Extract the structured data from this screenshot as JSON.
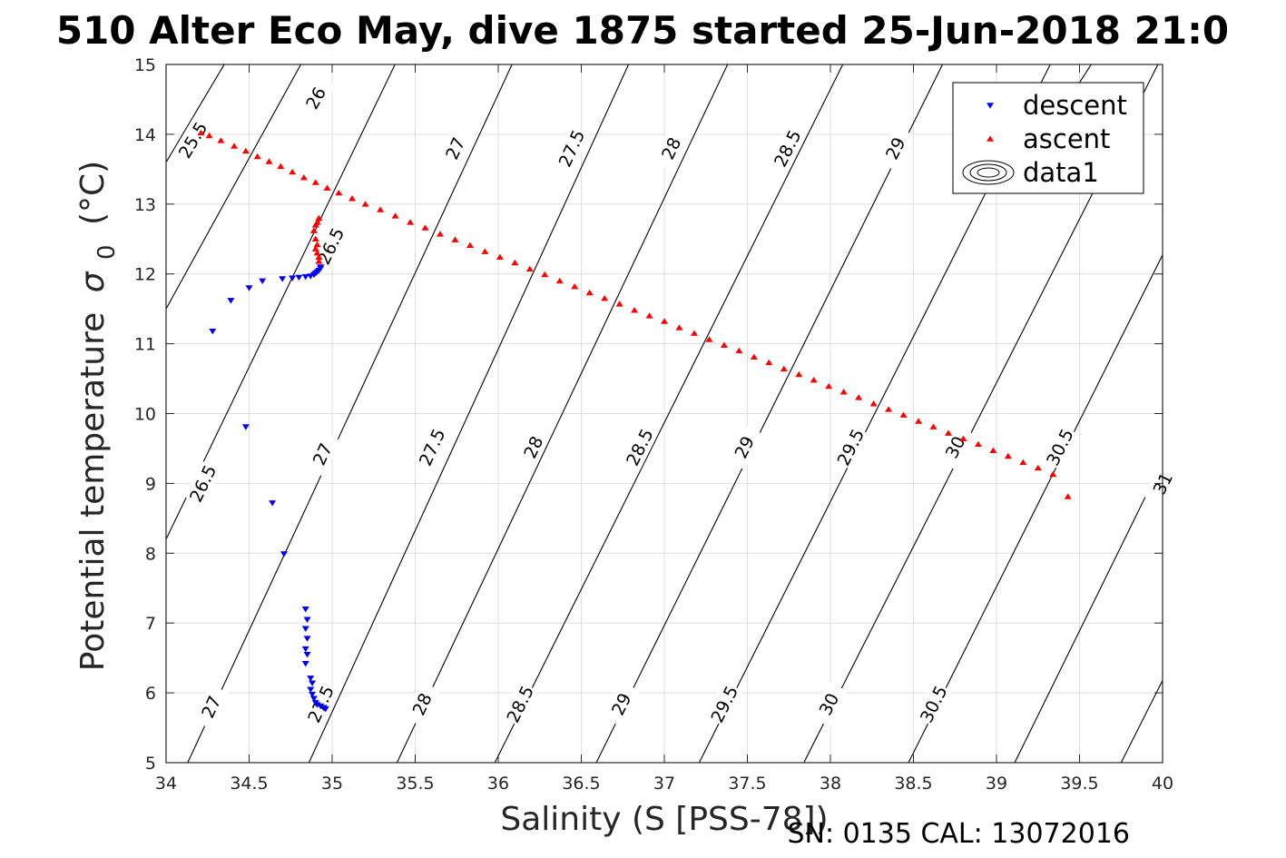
{
  "chart_data": {
    "type": "scatter",
    "title": "510 Alter Eco May, dive 1875 started 25-Jun-2018 21:0",
    "xlabel": "Salinity (S [PSS-78])",
    "ylabel": "Potential temperature σ₀ (°C)",
    "ylabel_main": "Potential temperature",
    "ylabel_sigma": "σ",
    "ylabel_sub": "0",
    "ylabel_unit": "(°C)",
    "xlim": [
      34,
      40
    ],
    "ylim": [
      5,
      15
    ],
    "xticks": [
      "34",
      "34.5",
      "35",
      "35.5",
      "36",
      "36.5",
      "37",
      "37.5",
      "38",
      "38.5",
      "39",
      "39.5",
      "40"
    ],
    "yticks": [
      "5",
      "6",
      "7",
      "8",
      "9",
      "10",
      "11",
      "12",
      "13",
      "14",
      "15"
    ],
    "grid": true,
    "legend_position": "top-right",
    "series": [
      {
        "name": "descent",
        "marker": "triangle-down",
        "color": "#0000ff",
        "points": [
          [
            34.28,
            11.18
          ],
          [
            34.39,
            11.62
          ],
          [
            34.5,
            11.8
          ],
          [
            34.58,
            11.9
          ],
          [
            34.7,
            11.93
          ],
          [
            34.76,
            11.94
          ],
          [
            34.8,
            11.95
          ],
          [
            34.84,
            11.96
          ],
          [
            34.87,
            11.97
          ],
          [
            34.89,
            11.99
          ],
          [
            34.9,
            12.01
          ],
          [
            34.91,
            12.03
          ],
          [
            34.92,
            12.05
          ],
          [
            34.93,
            12.08
          ],
          [
            34.93,
            12.1
          ],
          [
            34.48,
            9.81
          ],
          [
            34.64,
            8.72
          ],
          [
            34.71,
            7.99
          ],
          [
            34.84,
            7.2
          ],
          [
            34.85,
            7.05
          ],
          [
            34.84,
            6.92
          ],
          [
            34.85,
            6.78
          ],
          [
            34.84,
            6.63
          ],
          [
            34.85,
            6.55
          ],
          [
            34.84,
            6.42
          ],
          [
            34.87,
            6.21
          ],
          [
            34.88,
            6.14
          ],
          [
            34.87,
            6.05
          ],
          [
            34.88,
            5.98
          ],
          [
            34.89,
            5.92
          ],
          [
            34.9,
            5.86
          ],
          [
            34.91,
            5.83
          ],
          [
            34.93,
            5.81
          ],
          [
            34.95,
            5.79
          ],
          [
            34.96,
            5.77
          ]
        ]
      },
      {
        "name": "ascent",
        "marker": "triangle-up",
        "color": "#ff0000",
        "points": [
          [
            34.21,
            14.02
          ],
          [
            34.26,
            13.98
          ],
          [
            34.33,
            13.91
          ],
          [
            34.41,
            13.83
          ],
          [
            34.48,
            13.76
          ],
          [
            34.55,
            13.68
          ],
          [
            34.62,
            13.61
          ],
          [
            34.69,
            13.54
          ],
          [
            34.76,
            13.46
          ],
          [
            34.83,
            13.38
          ],
          [
            34.9,
            13.31
          ],
          [
            34.97,
            13.23
          ],
          [
            35.04,
            13.16
          ],
          [
            35.12,
            13.08
          ],
          [
            35.2,
            13.0
          ],
          [
            35.29,
            12.92
          ],
          [
            35.38,
            12.83
          ],
          [
            35.47,
            12.74
          ],
          [
            35.56,
            12.66
          ],
          [
            35.65,
            12.57
          ],
          [
            35.74,
            12.49
          ],
          [
            35.83,
            12.41
          ],
          [
            35.92,
            12.32
          ],
          [
            36.01,
            12.24
          ],
          [
            36.1,
            12.16
          ],
          [
            36.19,
            12.07
          ],
          [
            36.28,
            11.99
          ],
          [
            36.37,
            11.9
          ],
          [
            36.46,
            11.82
          ],
          [
            36.55,
            11.73
          ],
          [
            36.64,
            11.65
          ],
          [
            36.73,
            11.57
          ],
          [
            36.82,
            11.48
          ],
          [
            36.91,
            11.4
          ],
          [
            37.0,
            11.32
          ],
          [
            37.09,
            11.23
          ],
          [
            37.18,
            11.15
          ],
          [
            37.27,
            11.06
          ],
          [
            37.36,
            10.98
          ],
          [
            37.45,
            10.9
          ],
          [
            37.54,
            10.81
          ],
          [
            37.63,
            10.73
          ],
          [
            37.72,
            10.64
          ],
          [
            37.81,
            10.56
          ],
          [
            37.9,
            10.48
          ],
          [
            37.99,
            10.39
          ],
          [
            38.08,
            10.31
          ],
          [
            38.17,
            10.23
          ],
          [
            38.26,
            10.14
          ],
          [
            38.35,
            10.06
          ],
          [
            38.44,
            9.98
          ],
          [
            38.53,
            9.89
          ],
          [
            38.62,
            9.81
          ],
          [
            38.71,
            9.72
          ],
          [
            38.8,
            9.64
          ],
          [
            38.89,
            9.56
          ],
          [
            38.98,
            9.47
          ],
          [
            39.07,
            9.39
          ],
          [
            39.16,
            9.3
          ],
          [
            39.25,
            9.22
          ],
          [
            39.34,
            9.13
          ],
          [
            39.43,
            8.81
          ],
          [
            34.9,
            12.7
          ],
          [
            34.92,
            12.8
          ],
          [
            34.91,
            12.74
          ],
          [
            34.89,
            12.62
          ],
          [
            34.9,
            12.5
          ],
          [
            34.91,
            12.42
          ],
          [
            34.9,
            12.36
          ],
          [
            34.91,
            12.3
          ],
          [
            34.92,
            12.24
          ],
          [
            34.92,
            12.18
          ]
        ]
      },
      {
        "name": "data1",
        "marker": "contour",
        "color": "#000000",
        "points": []
      }
    ],
    "sigma_contours": [
      {
        "label": "25.5",
        "points": [
          [
            34.0,
            13.6
          ],
          [
            34.5,
            15.6
          ]
        ],
        "label_positions": [
          [
            34.16,
            13.92
          ]
        ]
      },
      {
        "label": "26",
        "points": [
          [
            34.0,
            11.5
          ],
          [
            34.95,
            15.6
          ]
        ],
        "label_positions": [
          [
            34.9,
            14.52
          ]
        ]
      },
      {
        "label": "26.5",
        "points": [
          [
            34.0,
            8.2
          ],
          [
            35.5,
            15.6
          ]
        ],
        "label_positions": [
          [
            34.22,
            9.0
          ],
          [
            34.99,
            12.4
          ]
        ]
      },
      {
        "label": "27",
        "points": [
          [
            34.13,
            5.0
          ],
          [
            36.2,
            15.6
          ]
        ],
        "label_positions": [
          [
            34.27,
            5.8
          ],
          [
            34.94,
            9.42
          ],
          [
            35.74,
            13.8
          ]
        ]
      },
      {
        "label": "27.5",
        "points": [
          [
            34.86,
            5.0
          ],
          [
            36.9,
            15.6
          ]
        ],
        "label_positions": [
          [
            34.93,
            5.84
          ],
          [
            35.6,
            9.52
          ],
          [
            36.44,
            13.8
          ]
        ]
      },
      {
        "label": "28",
        "points": [
          [
            35.39,
            5.0
          ],
          [
            37.5,
            15.6
          ]
        ],
        "label_positions": [
          [
            35.54,
            5.84
          ],
          [
            36.21,
            9.52
          ],
          [
            37.04,
            13.8
          ]
        ]
      },
      {
        "label": "28.5",
        "points": [
          [
            35.98,
            5.0
          ],
          [
            38.2,
            15.6
          ]
        ],
        "label_positions": [
          [
            36.13,
            5.84
          ],
          [
            36.85,
            9.52
          ],
          [
            37.74,
            13.8
          ]
        ]
      },
      {
        "label": "29",
        "points": [
          [
            36.59,
            5.0
          ],
          [
            38.8,
            15.6
          ]
        ],
        "label_positions": [
          [
            36.74,
            5.84
          ],
          [
            37.48,
            9.52
          ],
          [
            38.39,
            13.8
          ]
        ]
      },
      {
        "label": "29.5",
        "points": [
          [
            37.21,
            5.0
          ],
          [
            39.45,
            15.6
          ]
        ],
        "label_positions": [
          [
            37.36,
            5.84
          ],
          [
            38.12,
            9.52
          ],
          [
            39.01,
            13.8
          ]
        ]
      },
      {
        "label": "30",
        "points": [
          [
            37.84,
            5.0
          ],
          [
            40.1,
            15.6
          ]
        ],
        "label_positions": [
          [
            37.99,
            5.84
          ],
          [
            38.75,
            9.52
          ],
          [
            39.67,
            13.8
          ]
        ]
      },
      {
        "label": "30.5",
        "points": [
          [
            38.47,
            5.0
          ],
          [
            40.7,
            15.6
          ]
        ],
        "label_positions": [
          [
            38.62,
            5.84
          ],
          [
            39.38,
            9.52
          ]
        ]
      },
      {
        "label": "31",
        "points": [
          [
            39.11,
            5.0
          ],
          [
            41.3,
            15.6
          ]
        ],
        "label_positions": [
          [
            40.0,
            9.0
          ]
        ]
      },
      {
        "label": "",
        "points": [
          [
            39.75,
            5.0
          ],
          [
            42.0,
            15.6
          ]
        ],
        "label_positions": []
      },
      {
        "label": "",
        "points": [
          [
            39.3,
            14.0
          ],
          [
            42.0,
            24.0
          ]
        ],
        "label_positions": []
      }
    ]
  },
  "footer": {
    "calibration": "SN: 0135  CAL: 13072016"
  }
}
